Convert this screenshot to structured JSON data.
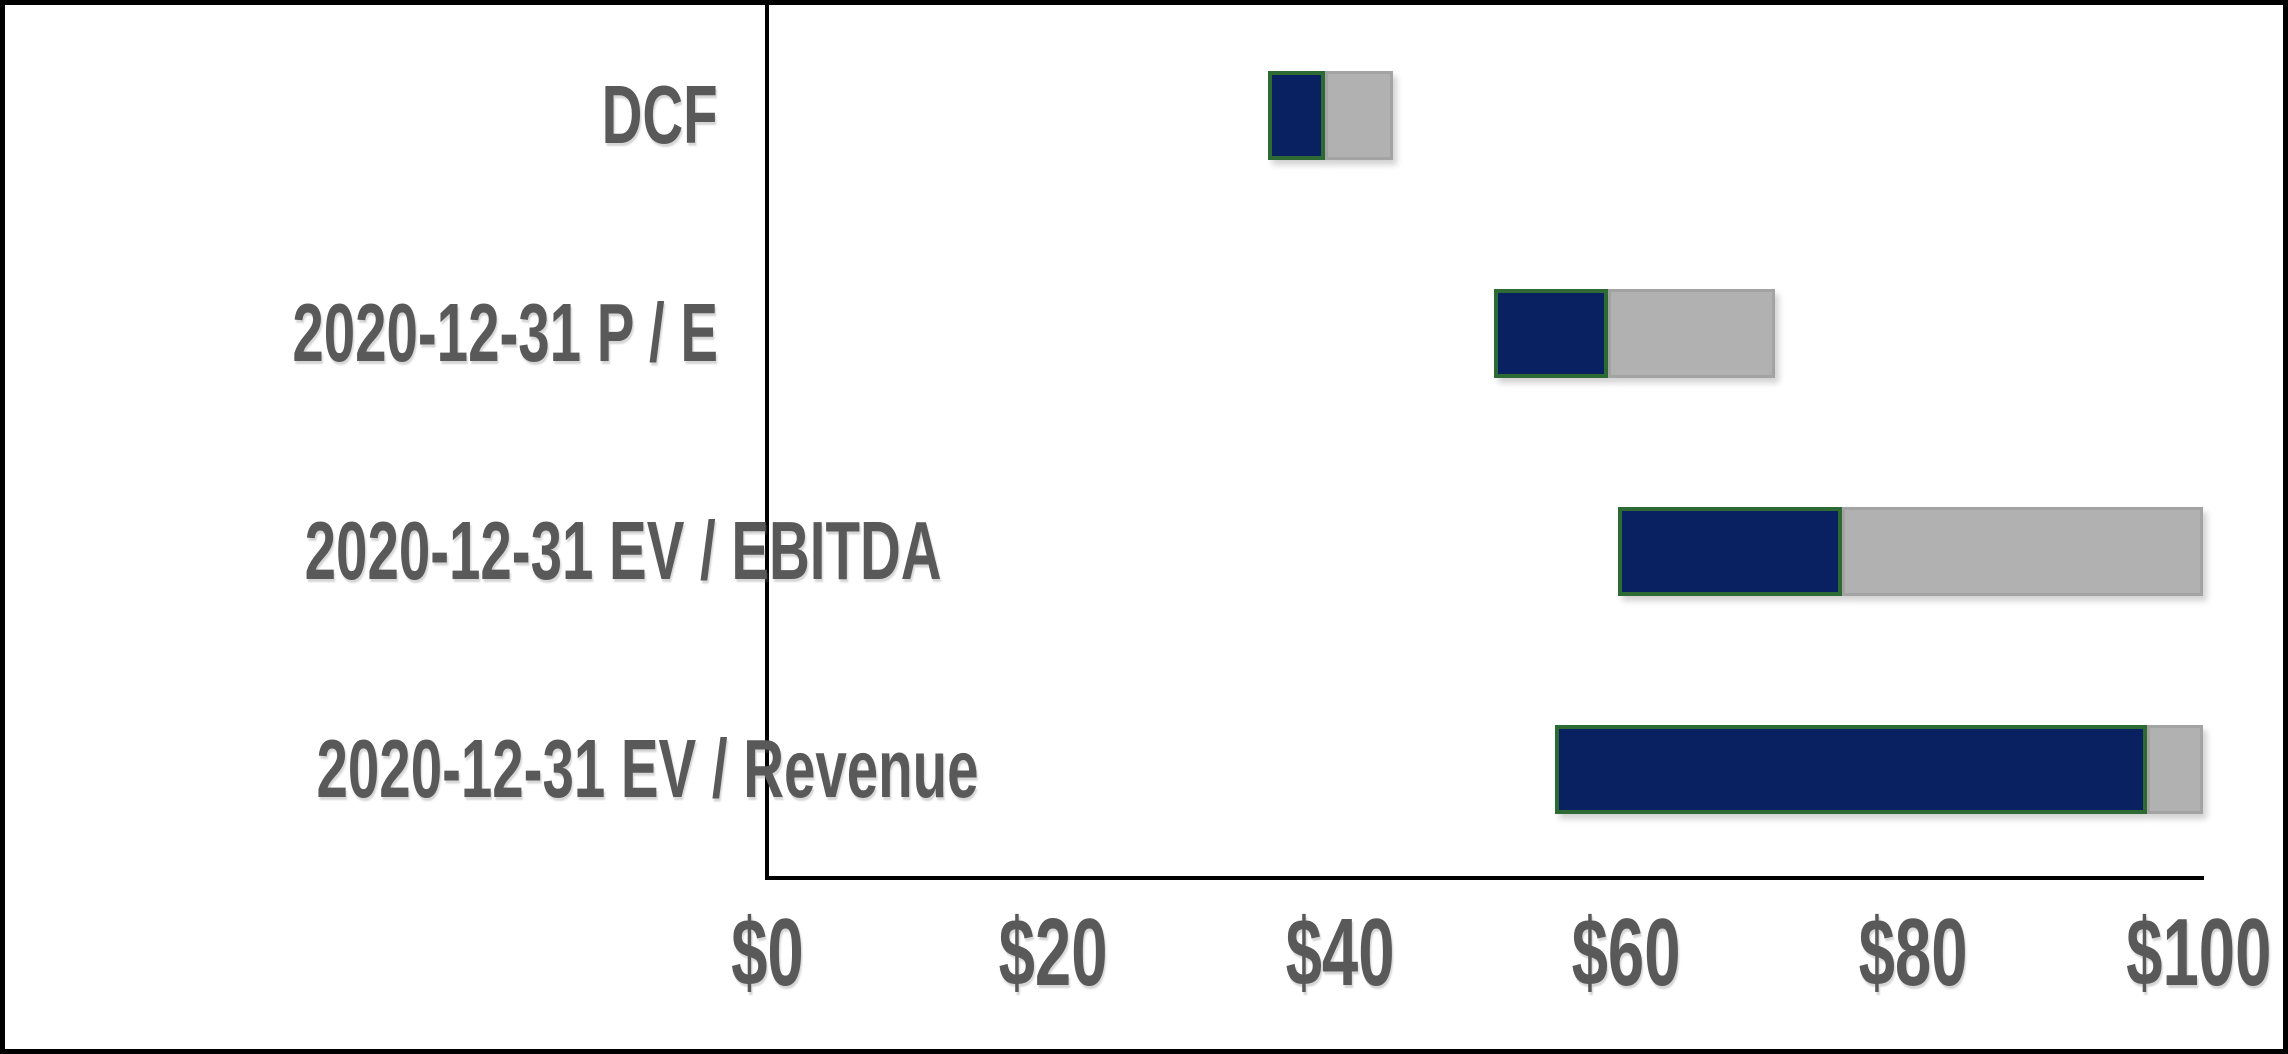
{
  "frame": {
    "border_color": "#000000",
    "background_color": "#ffffff"
  },
  "chart_data": {
    "type": "bar",
    "variant": "horizontal-range-football-field",
    "title": "",
    "xlabel": "",
    "ylabel": "",
    "grid": false,
    "legend": false,
    "text_color": "#595959",
    "axis_color": "#000000",
    "categories": [
      "DCF",
      "2020-12-31 P / E",
      "2020-12-31 EV / EBITDA",
      "2020-12-31 EV / Revenue"
    ],
    "rows": [
      {
        "label": "DCF",
        "low": 35.0,
        "mid": 39.0,
        "high": 43.7
      },
      {
        "label": "2020-12-31 P / E",
        "low": 50.8,
        "mid": 58.7,
        "high": 70.4
      },
      {
        "label": "2020-12-31 EV / EBITDA",
        "low": 59.4,
        "mid": 75.1,
        "high": 100.3
      },
      {
        "label": "2020-12-31 EV / Revenue",
        "low": 55.0,
        "mid": 96.4,
        "high": 100.3
      }
    ],
    "segments": {
      "primary": {
        "name": "low-to-mid",
        "fill": "#0a2161",
        "stroke": "#2e6a33"
      },
      "secondary": {
        "name": "mid-to-high",
        "fill": "#b1b1b1",
        "stroke": "#a3a3a3"
      }
    },
    "x_axis": {
      "min": 0,
      "max": 100,
      "tick_step": 20,
      "tick_values": [
        0,
        20,
        40,
        60,
        80,
        100
      ],
      "tick_labels": [
        "$0",
        "$20",
        "$40",
        "$60",
        "$80",
        "$100"
      ],
      "format": "currency-usd"
    }
  }
}
